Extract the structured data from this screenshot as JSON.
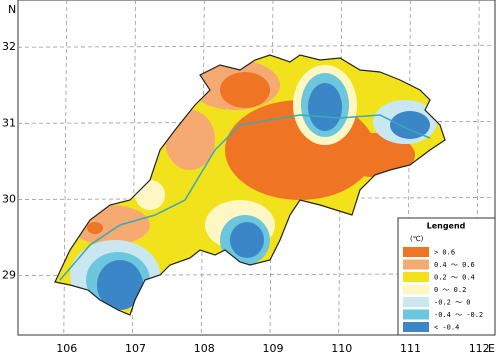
{
  "map": {
    "lat_label": "N",
    "lon_label": "E",
    "xlim": [
      105.29,
      112.23
    ],
    "ylim": [
      28.22,
      32.62
    ],
    "xticks": [
      106,
      107,
      108,
      109,
      110,
      111,
      112
    ],
    "yticks": [
      29,
      30,
      31,
      32
    ]
  },
  "legend": {
    "title": "Lengend",
    "unit": "(℃)",
    "items": [
      {
        "label": "> 0.6",
        "color": "#ef7424"
      },
      {
        "label": "0.4 ～ 0.6",
        "color": "#f4aa70"
      },
      {
        "label": "0.2 ～ 0.4",
        "color": "#f2e21c"
      },
      {
        "label": "0 ～ 0.2",
        "color": "#fdf7c4"
      },
      {
        "label": "-0.2 ～ 0",
        "color": "#c9e7f1"
      },
      {
        "label": "-0.4 ～ -0.2",
        "color": "#6cc6de"
      },
      {
        "label": "< -0.4",
        "color": "#3a86c6"
      }
    ]
  }
}
